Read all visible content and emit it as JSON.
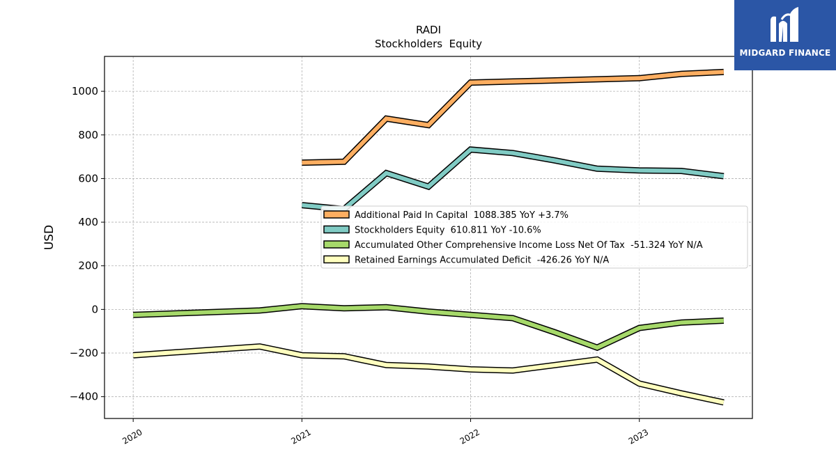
{
  "brand": {
    "name": "MIDGARD FINANCE",
    "bg_color": "#2b56a6",
    "icon": "midgard-m-logo-icon"
  },
  "chart_data": {
    "type": "line",
    "title": "RADI",
    "subtitle": "Stockholders  Equity",
    "xlabel": "",
    "ylabel": "USD",
    "ylim": [
      -500,
      1160
    ],
    "xlim": [
      2019.83,
      2023.67
    ],
    "yticks": [
      -400,
      -200,
      0,
      200,
      400,
      600,
      800,
      1000
    ],
    "ytick_labels": [
      "−400",
      "−200",
      "0",
      "200",
      "400",
      "600",
      "800",
      "1000"
    ],
    "xticks": [
      2020,
      2021,
      2022,
      2023
    ],
    "xtick_labels": [
      "2020",
      "2021",
      "2022",
      "2023"
    ],
    "grid": true,
    "legend_position": "center-right",
    "series": [
      {
        "name": "Additional Paid In Capital  1088.385 YoY +3.7%",
        "color": "#fdae61",
        "x": [
          2021.0,
          2021.25,
          2021.5,
          2021.75,
          2022.0,
          2022.25,
          2022.5,
          2022.75,
          2023.0,
          2023.25,
          2023.5
        ],
        "y": [
          673,
          677,
          875,
          845,
          1040,
          1045,
          1050,
          1055,
          1060,
          1080,
          1088.385
        ]
      },
      {
        "name": "Stockholders Equity  610.811 YoY -10.6%",
        "color": "#80cbc4",
        "x": [
          2021.0,
          2021.25,
          2021.5,
          2021.75,
          2022.0,
          2022.25,
          2022.5,
          2022.75,
          2023.0,
          2023.25,
          2023.5
        ],
        "y": [
          478,
          460,
          625,
          563,
          733,
          717,
          683,
          645,
          637,
          635,
          610.811
        ]
      },
      {
        "name": "Accumulated Other Comprehensive Income Loss Net Of Tax  -51.324 YoY N/A",
        "color": "#a6d96a",
        "x": [
          2020.0,
          2020.75,
          2021.0,
          2021.25,
          2021.5,
          2021.75,
          2022.0,
          2022.25,
          2022.5,
          2022.75,
          2023.0,
          2023.25,
          2023.5
        ],
        "y": [
          -25,
          -5,
          15,
          5,
          10,
          -10,
          -25,
          -40,
          -105,
          -175,
          -85,
          -60,
          -51.324
        ]
      },
      {
        "name": "Retained Earnings Accumulated Deficit  -426.26 YoY N/A",
        "color": "#ffffbf",
        "x": [
          2020.0,
          2020.75,
          2021.0,
          2021.25,
          2021.5,
          2021.75,
          2022.0,
          2022.25,
          2022.5,
          2022.75,
          2023.0,
          2023.25,
          2023.5
        ],
        "y": [
          -210,
          -170,
          -210,
          -215,
          -255,
          -262,
          -275,
          -280,
          -255,
          -230,
          -340,
          -385,
          -426.26
        ]
      }
    ]
  }
}
